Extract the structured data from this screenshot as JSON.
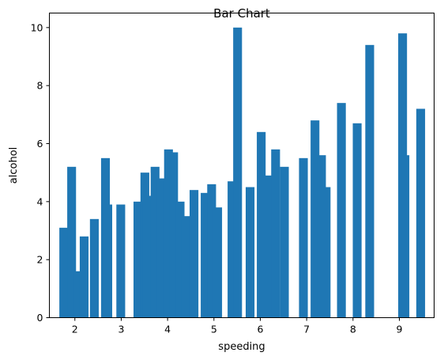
{
  "chart_data": {
    "type": "bar",
    "title": "Bar Chart",
    "xlabel": "speeding",
    "ylabel": "alcohol",
    "xlim": [
      1.45,
      9.75
    ],
    "ylim": [
      0,
      10.5
    ],
    "bar_width": 0.19,
    "color": "#1f77b4",
    "grid": false,
    "legend": "none",
    "xticks": [
      2,
      3,
      4,
      5,
      6,
      7,
      8,
      9
    ],
    "yticks": [
      0,
      2,
      4,
      6,
      8,
      10
    ],
    "x": [
      1.76,
      1.93,
      2.06,
      2.2,
      2.42,
      2.66,
      2.71,
      2.99,
      3.36,
      3.51,
      3.56,
      3.73,
      3.86,
      4.02,
      4.13,
      4.27,
      4.39,
      4.57,
      4.81,
      4.95,
      5.08,
      5.39,
      5.51,
      5.78,
      6.02,
      6.2,
      6.33,
      6.52,
      6.93,
      7.18,
      7.32,
      7.42,
      7.75,
      8.09,
      8.36,
      9.07,
      9.12,
      9.46
    ],
    "values": [
      3.1,
      5.2,
      1.6,
      2.8,
      3.4,
      5.5,
      3.9,
      3.9,
      4.0,
      5.0,
      4.2,
      5.2,
      4.8,
      5.8,
      5.7,
      4.0,
      3.5,
      4.4,
      4.3,
      4.6,
      3.8,
      4.7,
      10.0,
      4.5,
      6.4,
      4.9,
      5.8,
      5.2,
      5.5,
      6.8,
      5.6,
      4.5,
      7.4,
      6.7,
      9.4,
      9.8,
      5.6,
      7.2
    ]
  }
}
